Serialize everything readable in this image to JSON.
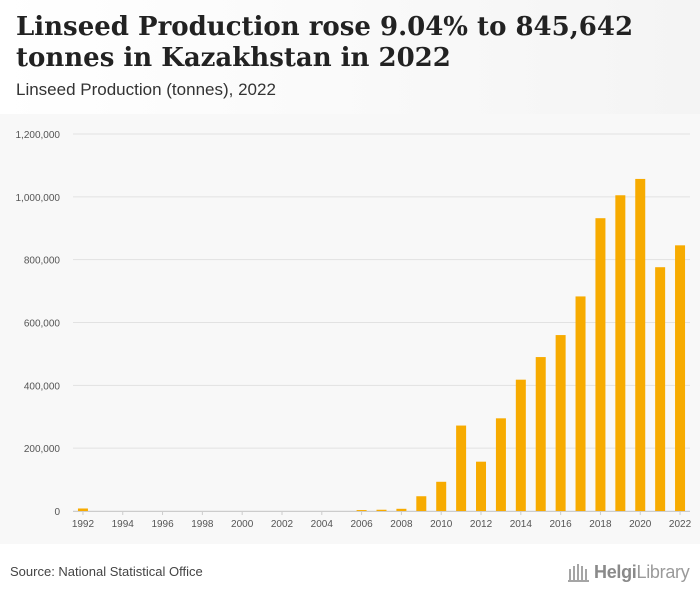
{
  "header": {
    "title": "Linseed Production rose 9.04% to 845,642 tonnes in Kazakhstan in 2022",
    "subtitle": "Linseed Production (tonnes), 2022"
  },
  "footer": {
    "source": "Source: National Statistical Office",
    "logo_bold": "Helgi",
    "logo_rest": "Library"
  },
  "colors": {
    "bar": "#f7ab00",
    "grid": "#e2e2e2",
    "axis_text": "#555555"
  },
  "chart_data": {
    "type": "bar",
    "title": "",
    "xlabel": "",
    "ylabel": "",
    "ylim": [
      0,
      1200000
    ],
    "yticks": [
      0,
      200000,
      400000,
      600000,
      800000,
      1000000,
      1200000
    ],
    "ytick_labels": [
      "0",
      "200,000",
      "400,000",
      "600,000",
      "800,000",
      "1,000,000",
      "1,200,000"
    ],
    "categories": [
      "1992",
      "1993",
      "1994",
      "1995",
      "1996",
      "1997",
      "1998",
      "1999",
      "2000",
      "2001",
      "2002",
      "2003",
      "2004",
      "2005",
      "2006",
      "2007",
      "2008",
      "2009",
      "2010",
      "2011",
      "2012",
      "2013",
      "2014",
      "2015",
      "2016",
      "2017",
      "2018",
      "2019",
      "2020",
      "2021",
      "2022"
    ],
    "xtick_labels": [
      "1992",
      "1994",
      "1996",
      "1998",
      "2000",
      "2002",
      "2004",
      "2006",
      "2008",
      "2010",
      "2012",
      "2014",
      "2016",
      "2018",
      "2020",
      "2022"
    ],
    "values": [
      8000,
      0,
      0,
      0,
      0,
      0,
      0,
      0,
      0,
      0,
      0,
      0,
      0,
      0,
      3000,
      4000,
      7000,
      47000,
      93000,
      272000,
      157000,
      295000,
      418000,
      490000,
      560000,
      683000,
      932000,
      1005000,
      1057000,
      776000,
      845642
    ],
    "grid": true,
    "legend": "none"
  }
}
